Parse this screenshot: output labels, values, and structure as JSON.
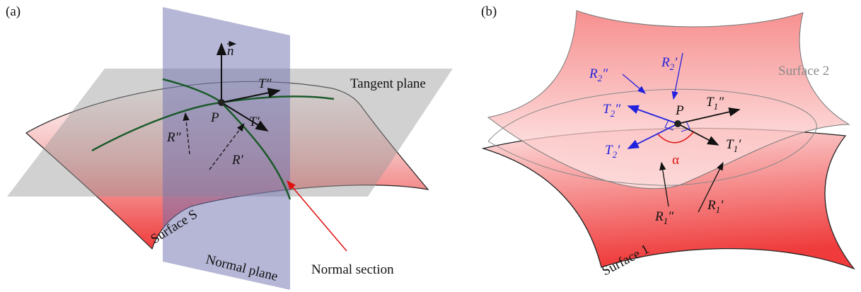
{
  "panel_a": {
    "label": "(a)",
    "normal_vector": "n",
    "tangent_double": "T″",
    "tangent_plane": "Tangent plane",
    "point": "P",
    "tangent_single": "T′",
    "radius_double": "R″",
    "radius_single": "R′",
    "surface": "Surface S",
    "normal_section": "Normal section",
    "normal_plane": "Normal plane"
  },
  "panel_b": {
    "label": "(b)",
    "surface_2": "Surface 2",
    "surface_1": "Surface 1",
    "point": "P",
    "angle": "α",
    "R2_double": {
      "base": "R",
      "sub": "2",
      "prime": "″"
    },
    "R2_single": {
      "base": "R",
      "sub": "2",
      "prime": "′"
    },
    "T2_double": {
      "base": "T",
      "sub": "2",
      "prime": "″"
    },
    "T2_single": {
      "base": "T",
      "sub": "2",
      "prime": "′"
    },
    "T1_double": {
      "base": "T",
      "sub": "1",
      "prime": "″"
    },
    "T1_single": {
      "base": "T",
      "sub": "1",
      "prime": "′"
    },
    "R1_double": {
      "base": "R",
      "sub": "1",
      "prime": "″"
    },
    "R1_single": {
      "base": "R",
      "sub": "1",
      "prime": "′"
    }
  }
}
